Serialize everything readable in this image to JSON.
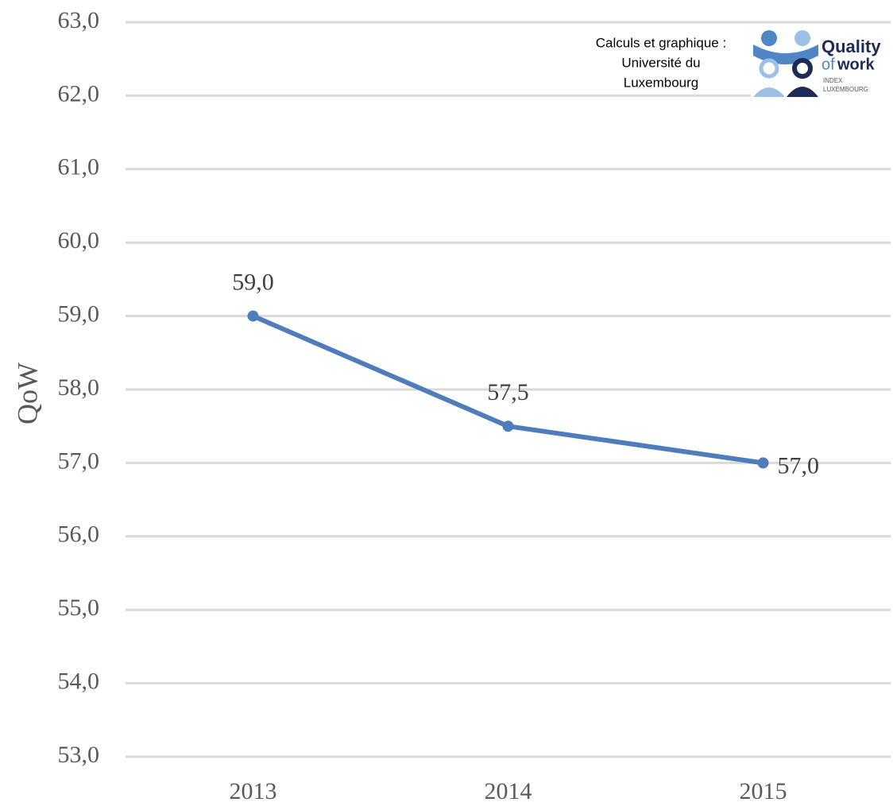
{
  "chart_data": {
    "type": "line",
    "ylabel": "QoW",
    "categories": [
      "2013",
      "2014",
      "2015"
    ],
    "series": [
      {
        "name": "QoW",
        "color": "#4f7dbb",
        "values": [
          59.0,
          57.5,
          57.0
        ],
        "value_labels": [
          "59,0",
          "57,5",
          "57,0"
        ]
      }
    ],
    "ylim": [
      53,
      63
    ],
    "yticks": [
      {
        "value": 53,
        "label": "53,0"
      },
      {
        "value": 54,
        "label": "54,0"
      },
      {
        "value": 55,
        "label": "55,0"
      },
      {
        "value": 56,
        "label": "56,0"
      },
      {
        "value": 57,
        "label": "57,0"
      },
      {
        "value": 58,
        "label": "58,0"
      },
      {
        "value": 59,
        "label": "59,0"
      },
      {
        "value": 60,
        "label": "60,0"
      },
      {
        "value": 61,
        "label": "61,0"
      },
      {
        "value": 62,
        "label": "62,0"
      },
      {
        "value": 63,
        "label": "63,0"
      }
    ],
    "grid": true,
    "annotation": [
      "Calculs et graphique :",
      "Université du",
      "Luxembourg"
    ],
    "logo": {
      "line1": "Quality",
      "of": "of",
      "work": "work",
      "line3": "INDEX",
      "line4": "LUXEMBOURG"
    }
  }
}
